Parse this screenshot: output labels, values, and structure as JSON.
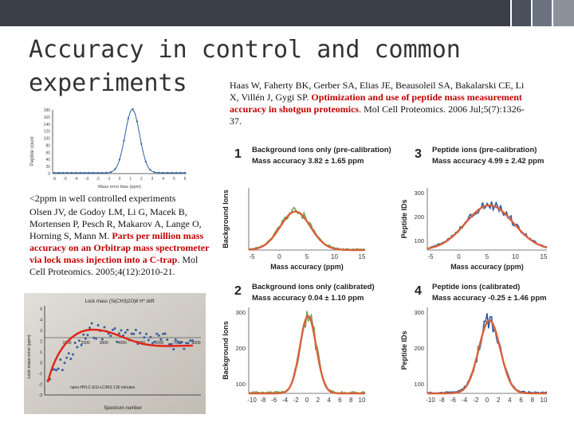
{
  "slide": {
    "title": "Accuracy in control and common experiments",
    "colors": {
      "topbar_dark": "#3a3f4a",
      "topbar_mid": "#6b7280",
      "accent_red": "#c00000",
      "text": "#333333"
    }
  },
  "citation_top": {
    "plain": "Haas W, Faherty BK, Gerber SA, Elias JE, Beausoleil SA, Bakalarski CE, Li X, Villén J, Gygi SP.",
    "highlight": "Optimization and use of peptide mass measurement accuracy in shotgun proteomics",
    "tail": ". Mol Cell Proteomics. 2006 Jul;5(7):1326-37."
  },
  "citation_left": {
    "caption": "<2ppm in well controlled experiments",
    "plain": "Olsen JV, de Godoy LM, Li G, Macek B, Mortensen P, Pesch R, Makarov A, Lange O, Horning S, Mann M.",
    "highlight": "Parts per million mass accuracy on an Orbitrap mass spectrometer via lock mass injection into a C-trap",
    "tail": ". Mol Cell Proteomics. 2005;4(12):2010-21."
  },
  "fig_hist": {
    "ylabel": "Peptide count",
    "xlabel": "Mass error bias (ppm)",
    "yticks": [
      "180",
      "160",
      "140",
      "120",
      "100",
      "80",
      "60",
      "40",
      "20",
      "0"
    ],
    "xticks": [
      "-6",
      "-5",
      "-4",
      "-3",
      "-2",
      "-1",
      "0",
      "1",
      "2",
      "3",
      "4",
      "5",
      "6"
    ]
  },
  "fig_lockmass": {
    "title": "Lock mass (Si(CH3)2O)6 H* drift",
    "ylabel": "Lock mass error (ppm)",
    "xlabel": "Spectrum number",
    "note": "nano-HPLC-ESI-LC/MS 130 minutes",
    "xticks": [
      "1000",
      "2000",
      "3000",
      "4000",
      "5000",
      "6000",
      "7000",
      "8000"
    ],
    "yticks": [
      "5",
      "4",
      "3",
      "2",
      "1",
      "0",
      "-1",
      "-2",
      "-3"
    ]
  },
  "panels": [
    {
      "number": "1",
      "title": "Background ions only (pre-calibration)",
      "accuracy": "Mass accuracy 3.82 ± 1.65 ppm",
      "ylabel": "Background Ions",
      "xlabel": "Mass accuracy (ppm)",
      "yticks": [],
      "xticks": [
        "-5",
        "0",
        "5",
        "10",
        "15"
      ]
    },
    {
      "number": "3",
      "title": "Peptide ions (pre-calibration)",
      "accuracy": "Mass accuracy 4.99 ± 2.42 ppm",
      "ylabel": "Peptide IDs",
      "xlabel": "Mass accuracy (ppm)",
      "yticks": [
        "300",
        "200",
        "100"
      ],
      "xticks": [
        "-5",
        "0",
        "5",
        "10",
        "15"
      ]
    },
    {
      "number": "2",
      "title": "Background ions only (calibrated)",
      "accuracy": "Mass accuracy 0.04 ± 1.10 ppm",
      "ylabel": "Background Ions",
      "xlabel": "Mass accuracy (ppm)",
      "yticks": [
        "300",
        "200",
        "100"
      ],
      "xticks": [
        "-10",
        "-8",
        "-6",
        "-4",
        "-2",
        "0",
        "2",
        "4",
        "6",
        "8",
        "10"
      ]
    },
    {
      "number": "4",
      "title": "Peptide ions (calibrated)",
      "accuracy": "Mass accuracy -0.25 ± 1.46 ppm",
      "ylabel": "Peptide IDs",
      "xlabel": "Mass accuracy (ppm)",
      "yticks": [
        "300",
        "200",
        "100"
      ],
      "xticks": [
        "-10",
        "-8",
        "-6",
        "-4",
        "-2",
        "0",
        "2",
        "4",
        "6",
        "8",
        "10"
      ]
    }
  ]
}
